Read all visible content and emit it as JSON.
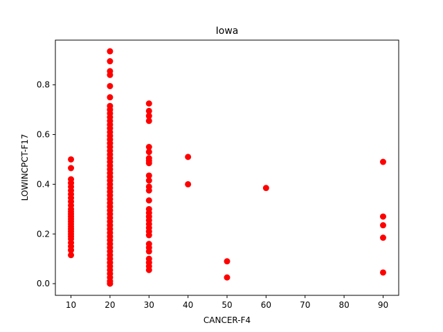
{
  "chart_data": {
    "type": "scatter",
    "title": "Iowa",
    "xlabel": "CANCER-F4",
    "ylabel": "LOWINCPCT-F17",
    "xlim": [
      6,
      94
    ],
    "ylim": [
      -0.047,
      0.98
    ],
    "xticks": [
      10,
      20,
      30,
      40,
      50,
      60,
      70,
      80,
      90
    ],
    "yticks": [
      0.0,
      0.2,
      0.4,
      0.6,
      0.8
    ],
    "ytick_labels": [
      "0.0",
      "0.2",
      "0.4",
      "0.6",
      "0.8"
    ],
    "grid": false,
    "marker_color": "#ff0000",
    "series": [
      {
        "points": [
          {
            "x": 10,
            "y": 0.5
          },
          {
            "x": 10,
            "y": 0.465
          },
          {
            "x": 10,
            "y": 0.42
          },
          {
            "x": 10,
            "y": 0.405
          },
          {
            "x": 10,
            "y": 0.39
          },
          {
            "x": 10,
            "y": 0.375
          },
          {
            "x": 10,
            "y": 0.36
          },
          {
            "x": 10,
            "y": 0.345
          },
          {
            "x": 10,
            "y": 0.33
          },
          {
            "x": 10,
            "y": 0.315
          },
          {
            "x": 10,
            "y": 0.3
          },
          {
            "x": 10,
            "y": 0.29
          },
          {
            "x": 10,
            "y": 0.28
          },
          {
            "x": 10,
            "y": 0.27
          },
          {
            "x": 10,
            "y": 0.26
          },
          {
            "x": 10,
            "y": 0.25
          },
          {
            "x": 10,
            "y": 0.24
          },
          {
            "x": 10,
            "y": 0.23
          },
          {
            "x": 10,
            "y": 0.22
          },
          {
            "x": 10,
            "y": 0.21
          },
          {
            "x": 10,
            "y": 0.2
          },
          {
            "x": 10,
            "y": 0.19
          },
          {
            "x": 10,
            "y": 0.18
          },
          {
            "x": 10,
            "y": 0.165
          },
          {
            "x": 10,
            "y": 0.15
          },
          {
            "x": 10,
            "y": 0.135
          },
          {
            "x": 10,
            "y": 0.115
          },
          {
            "x": 20,
            "y": 0.935
          },
          {
            "x": 20,
            "y": 0.895
          },
          {
            "x": 20,
            "y": 0.855
          },
          {
            "x": 20,
            "y": 0.84
          },
          {
            "x": 20,
            "y": 0.795
          },
          {
            "x": 20,
            "y": 0.75
          },
          {
            "x": 20,
            "y": 0.715
          },
          {
            "x": 20,
            "y": 0.7
          },
          {
            "x": 20,
            "y": 0.685
          },
          {
            "x": 20,
            "y": 0.67
          },
          {
            "x": 20,
            "y": 0.655
          },
          {
            "x": 20,
            "y": 0.64
          },
          {
            "x": 20,
            "y": 0.625
          },
          {
            "x": 20,
            "y": 0.61
          },
          {
            "x": 20,
            "y": 0.595
          },
          {
            "x": 20,
            "y": 0.58
          },
          {
            "x": 20,
            "y": 0.565
          },
          {
            "x": 20,
            "y": 0.55
          },
          {
            "x": 20,
            "y": 0.535
          },
          {
            "x": 20,
            "y": 0.52
          },
          {
            "x": 20,
            "y": 0.505
          },
          {
            "x": 20,
            "y": 0.49
          },
          {
            "x": 20,
            "y": 0.475
          },
          {
            "x": 20,
            "y": 0.46
          },
          {
            "x": 20,
            "y": 0.445
          },
          {
            "x": 20,
            "y": 0.43
          },
          {
            "x": 20,
            "y": 0.415
          },
          {
            "x": 20,
            "y": 0.4
          },
          {
            "x": 20,
            "y": 0.385
          },
          {
            "x": 20,
            "y": 0.37
          },
          {
            "x": 20,
            "y": 0.355
          },
          {
            "x": 20,
            "y": 0.34
          },
          {
            "x": 20,
            "y": 0.325
          },
          {
            "x": 20,
            "y": 0.31
          },
          {
            "x": 20,
            "y": 0.295
          },
          {
            "x": 20,
            "y": 0.28
          },
          {
            "x": 20,
            "y": 0.265
          },
          {
            "x": 20,
            "y": 0.25
          },
          {
            "x": 20,
            "y": 0.235
          },
          {
            "x": 20,
            "y": 0.22
          },
          {
            "x": 20,
            "y": 0.205
          },
          {
            "x": 20,
            "y": 0.19
          },
          {
            "x": 20,
            "y": 0.175
          },
          {
            "x": 20,
            "y": 0.16
          },
          {
            "x": 20,
            "y": 0.145
          },
          {
            "x": 20,
            "y": 0.13
          },
          {
            "x": 20,
            "y": 0.115
          },
          {
            "x": 20,
            "y": 0.1
          },
          {
            "x": 20,
            "y": 0.085
          },
          {
            "x": 20,
            "y": 0.07
          },
          {
            "x": 20,
            "y": 0.055
          },
          {
            "x": 20,
            "y": 0.04
          },
          {
            "x": 20,
            "y": 0.025
          },
          {
            "x": 20,
            "y": 0.01
          },
          {
            "x": 20,
            "y": 0.0
          },
          {
            "x": 30,
            "y": 0.725
          },
          {
            "x": 30,
            "y": 0.695
          },
          {
            "x": 30,
            "y": 0.675
          },
          {
            "x": 30,
            "y": 0.655
          },
          {
            "x": 30,
            "y": 0.55
          },
          {
            "x": 30,
            "y": 0.53
          },
          {
            "x": 30,
            "y": 0.505
          },
          {
            "x": 30,
            "y": 0.495
          },
          {
            "x": 30,
            "y": 0.485
          },
          {
            "x": 30,
            "y": 0.435
          },
          {
            "x": 30,
            "y": 0.415
          },
          {
            "x": 30,
            "y": 0.39
          },
          {
            "x": 30,
            "y": 0.375
          },
          {
            "x": 30,
            "y": 0.335
          },
          {
            "x": 30,
            "y": 0.3
          },
          {
            "x": 30,
            "y": 0.285
          },
          {
            "x": 30,
            "y": 0.27
          },
          {
            "x": 30,
            "y": 0.255
          },
          {
            "x": 30,
            "y": 0.24
          },
          {
            "x": 30,
            "y": 0.225
          },
          {
            "x": 30,
            "y": 0.21
          },
          {
            "x": 30,
            "y": 0.195
          },
          {
            "x": 30,
            "y": 0.16
          },
          {
            "x": 30,
            "y": 0.145
          },
          {
            "x": 30,
            "y": 0.13
          },
          {
            "x": 30,
            "y": 0.1
          },
          {
            "x": 30,
            "y": 0.085
          },
          {
            "x": 30,
            "y": 0.07
          },
          {
            "x": 30,
            "y": 0.055
          },
          {
            "x": 40,
            "y": 0.51
          },
          {
            "x": 40,
            "y": 0.4
          },
          {
            "x": 50,
            "y": 0.09
          },
          {
            "x": 50,
            "y": 0.025
          },
          {
            "x": 60,
            "y": 0.385
          },
          {
            "x": 90,
            "y": 0.49
          },
          {
            "x": 90,
            "y": 0.27
          },
          {
            "x": 90,
            "y": 0.235
          },
          {
            "x": 90,
            "y": 0.185
          },
          {
            "x": 90,
            "y": 0.045
          }
        ]
      }
    ]
  }
}
